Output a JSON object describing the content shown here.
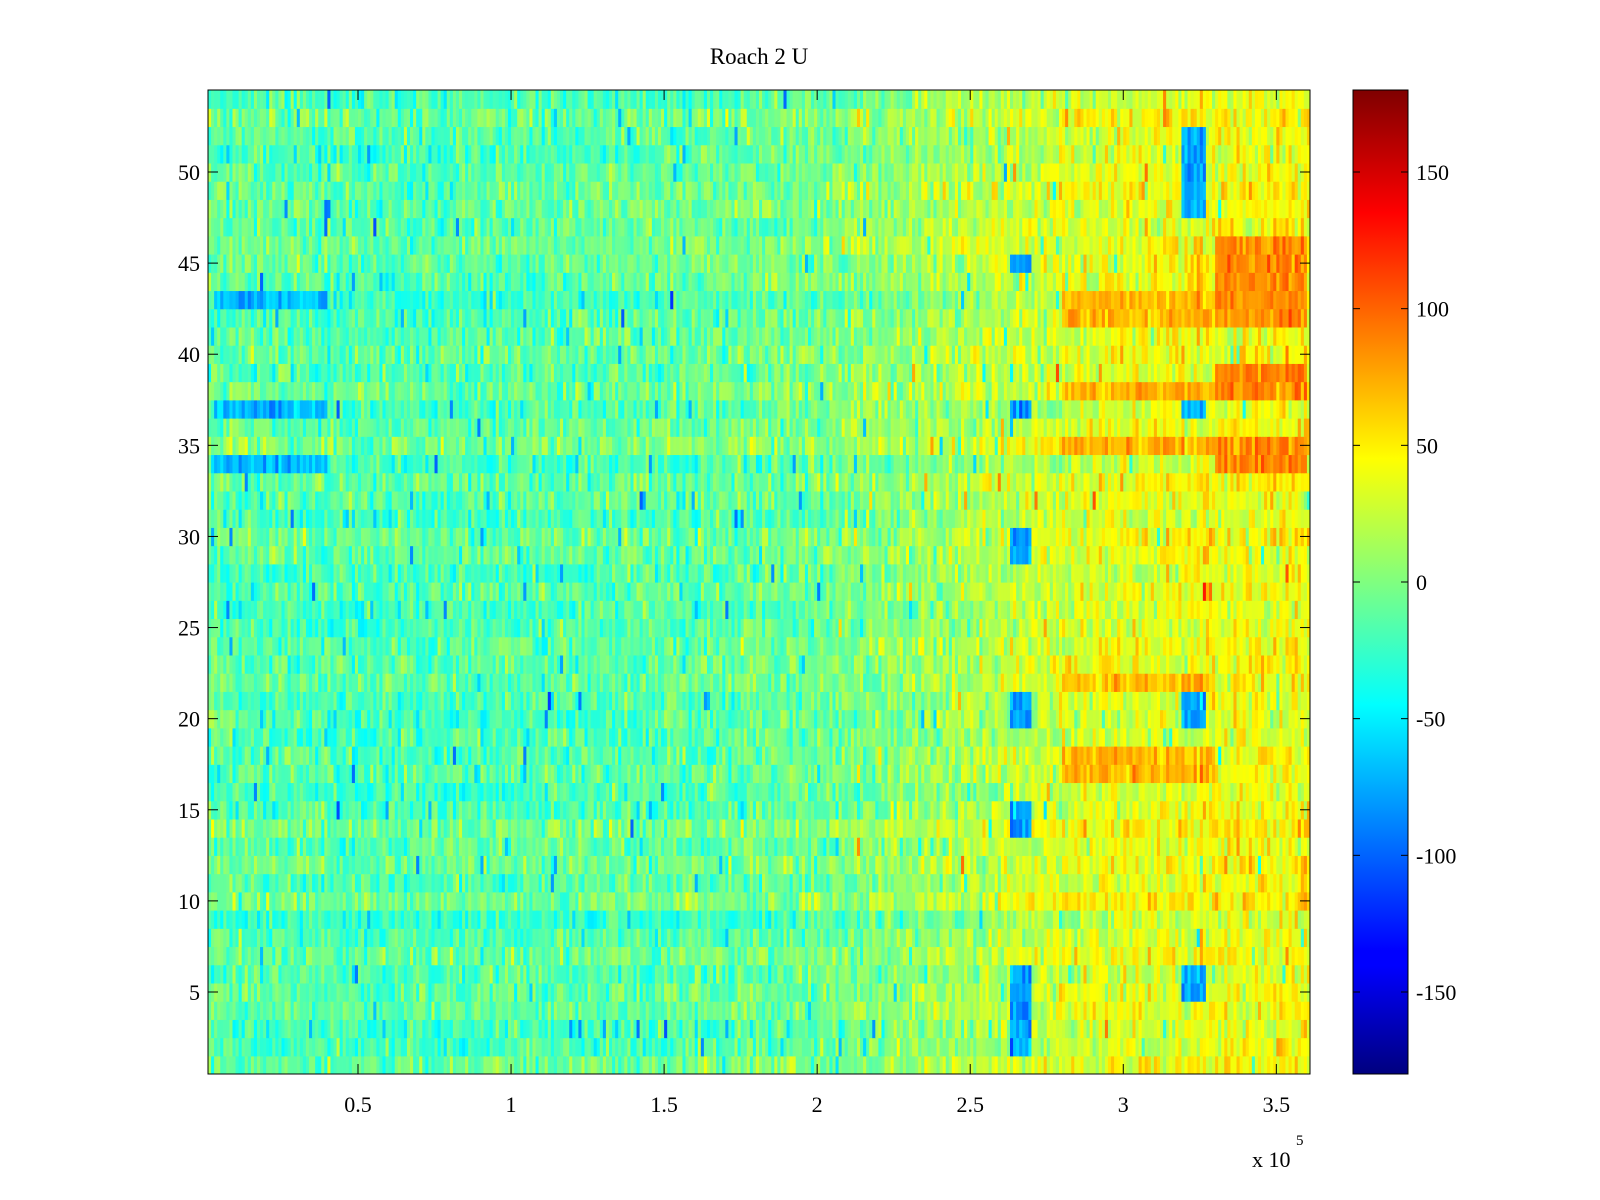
{
  "chart_data": {
    "type": "heatmap",
    "title": "Roach 2 U",
    "xlabel": "",
    "ylabel": "",
    "x_range": [
      1000,
      361000
    ],
    "y_range": [
      0.5,
      54.5
    ],
    "rows": 54,
    "x_ticks": [
      50000,
      100000,
      150000,
      200000,
      250000,
      300000,
      350000
    ],
    "x_tick_labels": [
      "0.5",
      "1",
      "1.5",
      "2",
      "2.5",
      "3",
      "3.5"
    ],
    "x_multiplier_base": "x 10",
    "x_multiplier_exponent": "5",
    "y_ticks": [
      5,
      10,
      15,
      20,
      25,
      30,
      35,
      40,
      45,
      50
    ],
    "y_tick_labels": [
      "5",
      "10",
      "15",
      "20",
      "25",
      "30",
      "35",
      "40",
      "45",
      "50"
    ],
    "colorbar": {
      "colormap": "jet",
      "range": [
        -180,
        180
      ],
      "ticks": [
        -150,
        -100,
        -50,
        0,
        50,
        100,
        150
      ],
      "tick_labels": [
        "-150",
        "-100",
        "-50",
        "0",
        "50",
        "100",
        "150"
      ]
    },
    "trend": {
      "x_breakpoints": [
        0,
        50000,
        100000,
        150000,
        200000,
        250000,
        280000,
        300000,
        330000,
        360000
      ],
      "mean_value": [
        -12,
        -18,
        -15,
        -12,
        -5,
        15,
        30,
        35,
        40,
        42
      ]
    },
    "features": [
      {
        "x_range": [
          263000,
          270000
        ],
        "rows": [
          2,
          3,
          4,
          5,
          6,
          14,
          15,
          20,
          21,
          29,
          30,
          37,
          45
        ],
        "value": -80,
        "note": "cool blob column"
      },
      {
        "x_range": [
          319000,
          327000
        ],
        "rows": [
          5,
          6,
          20,
          21,
          37,
          48,
          49,
          50,
          51,
          52
        ],
        "value": -75,
        "note": "cool blob column"
      },
      {
        "x_range": [
          330000,
          360000
        ],
        "rows": [
          34,
          35,
          38,
          39,
          42,
          43,
          44,
          45,
          46
        ],
        "value": 85,
        "note": "warm rows"
      },
      {
        "x_range": [
          280000,
          330000
        ],
        "rows": [
          17,
          18,
          22,
          35,
          38,
          42,
          43
        ],
        "value": 70,
        "note": "warm rows"
      },
      {
        "x_range": [
          3000,
          40000
        ],
        "rows": [
          34,
          37,
          43
        ],
        "value": -70,
        "note": "cool streaks"
      }
    ]
  }
}
